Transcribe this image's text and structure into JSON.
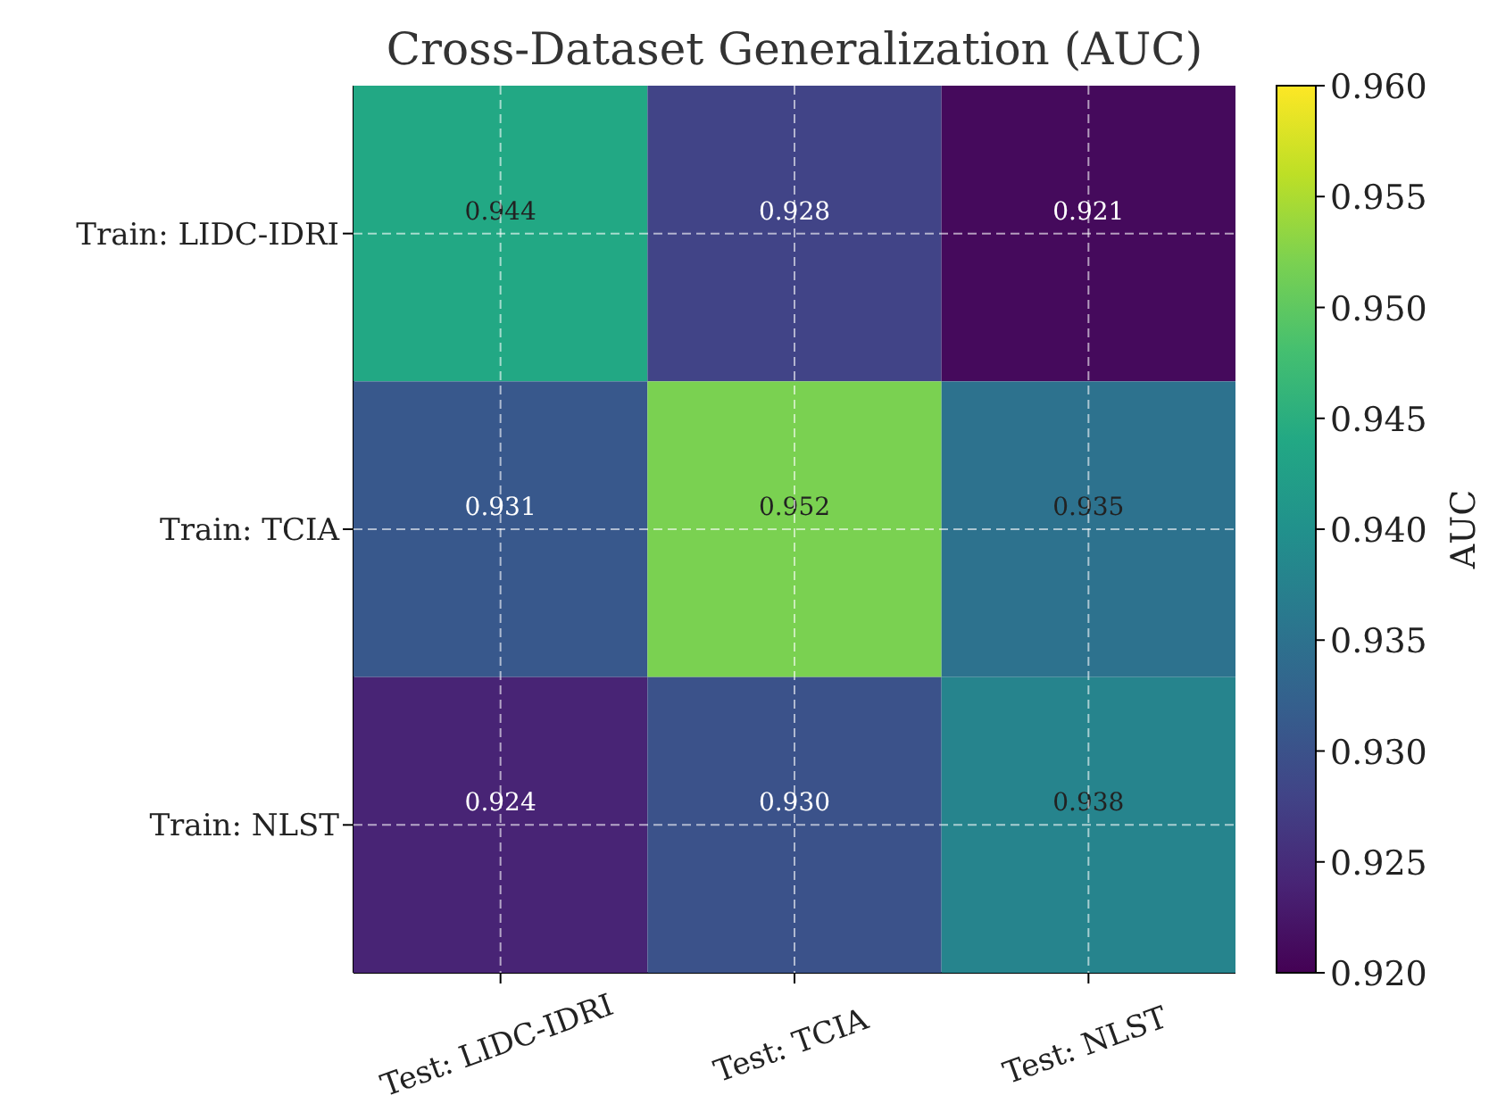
{
  "chart_data": {
    "type": "heatmap",
    "title": "Cross-Dataset Generalization (AUC)",
    "categories": [
      "Test: LIDC-IDRI",
      "Test: TCIA",
      "Test: NLST"
    ],
    "y_categories": [
      "Train: LIDC-IDRI",
      "Train: TCIA",
      "Train: NLST"
    ],
    "cells": [
      [
        0.944,
        0.928,
        0.921
      ],
      [
        0.931,
        0.952,
        0.935
      ],
      [
        0.924,
        0.93,
        0.938
      ]
    ],
    "cell_labels": [
      [
        "0.944",
        "0.928",
        "0.921"
      ],
      [
        "0.931",
        "0.952",
        "0.935"
      ],
      [
        "0.924",
        "0.930",
        "0.938"
      ]
    ],
    "data_labels": true,
    "grid": true,
    "clabel": "AUC",
    "clim": [
      0.92,
      0.96
    ],
    "cticks": [
      {
        "value": 0.92,
        "label": "0.920"
      },
      {
        "value": 0.925,
        "label": "0.925"
      },
      {
        "value": 0.93,
        "label": "0.930"
      },
      {
        "value": 0.935,
        "label": "0.935"
      },
      {
        "value": 0.94,
        "label": "0.940"
      },
      {
        "value": 0.945,
        "label": "0.945"
      },
      {
        "value": 0.95,
        "label": "0.950"
      },
      {
        "value": 0.955,
        "label": "0.955"
      },
      {
        "value": 0.96,
        "label": "0.960"
      }
    ]
  }
}
